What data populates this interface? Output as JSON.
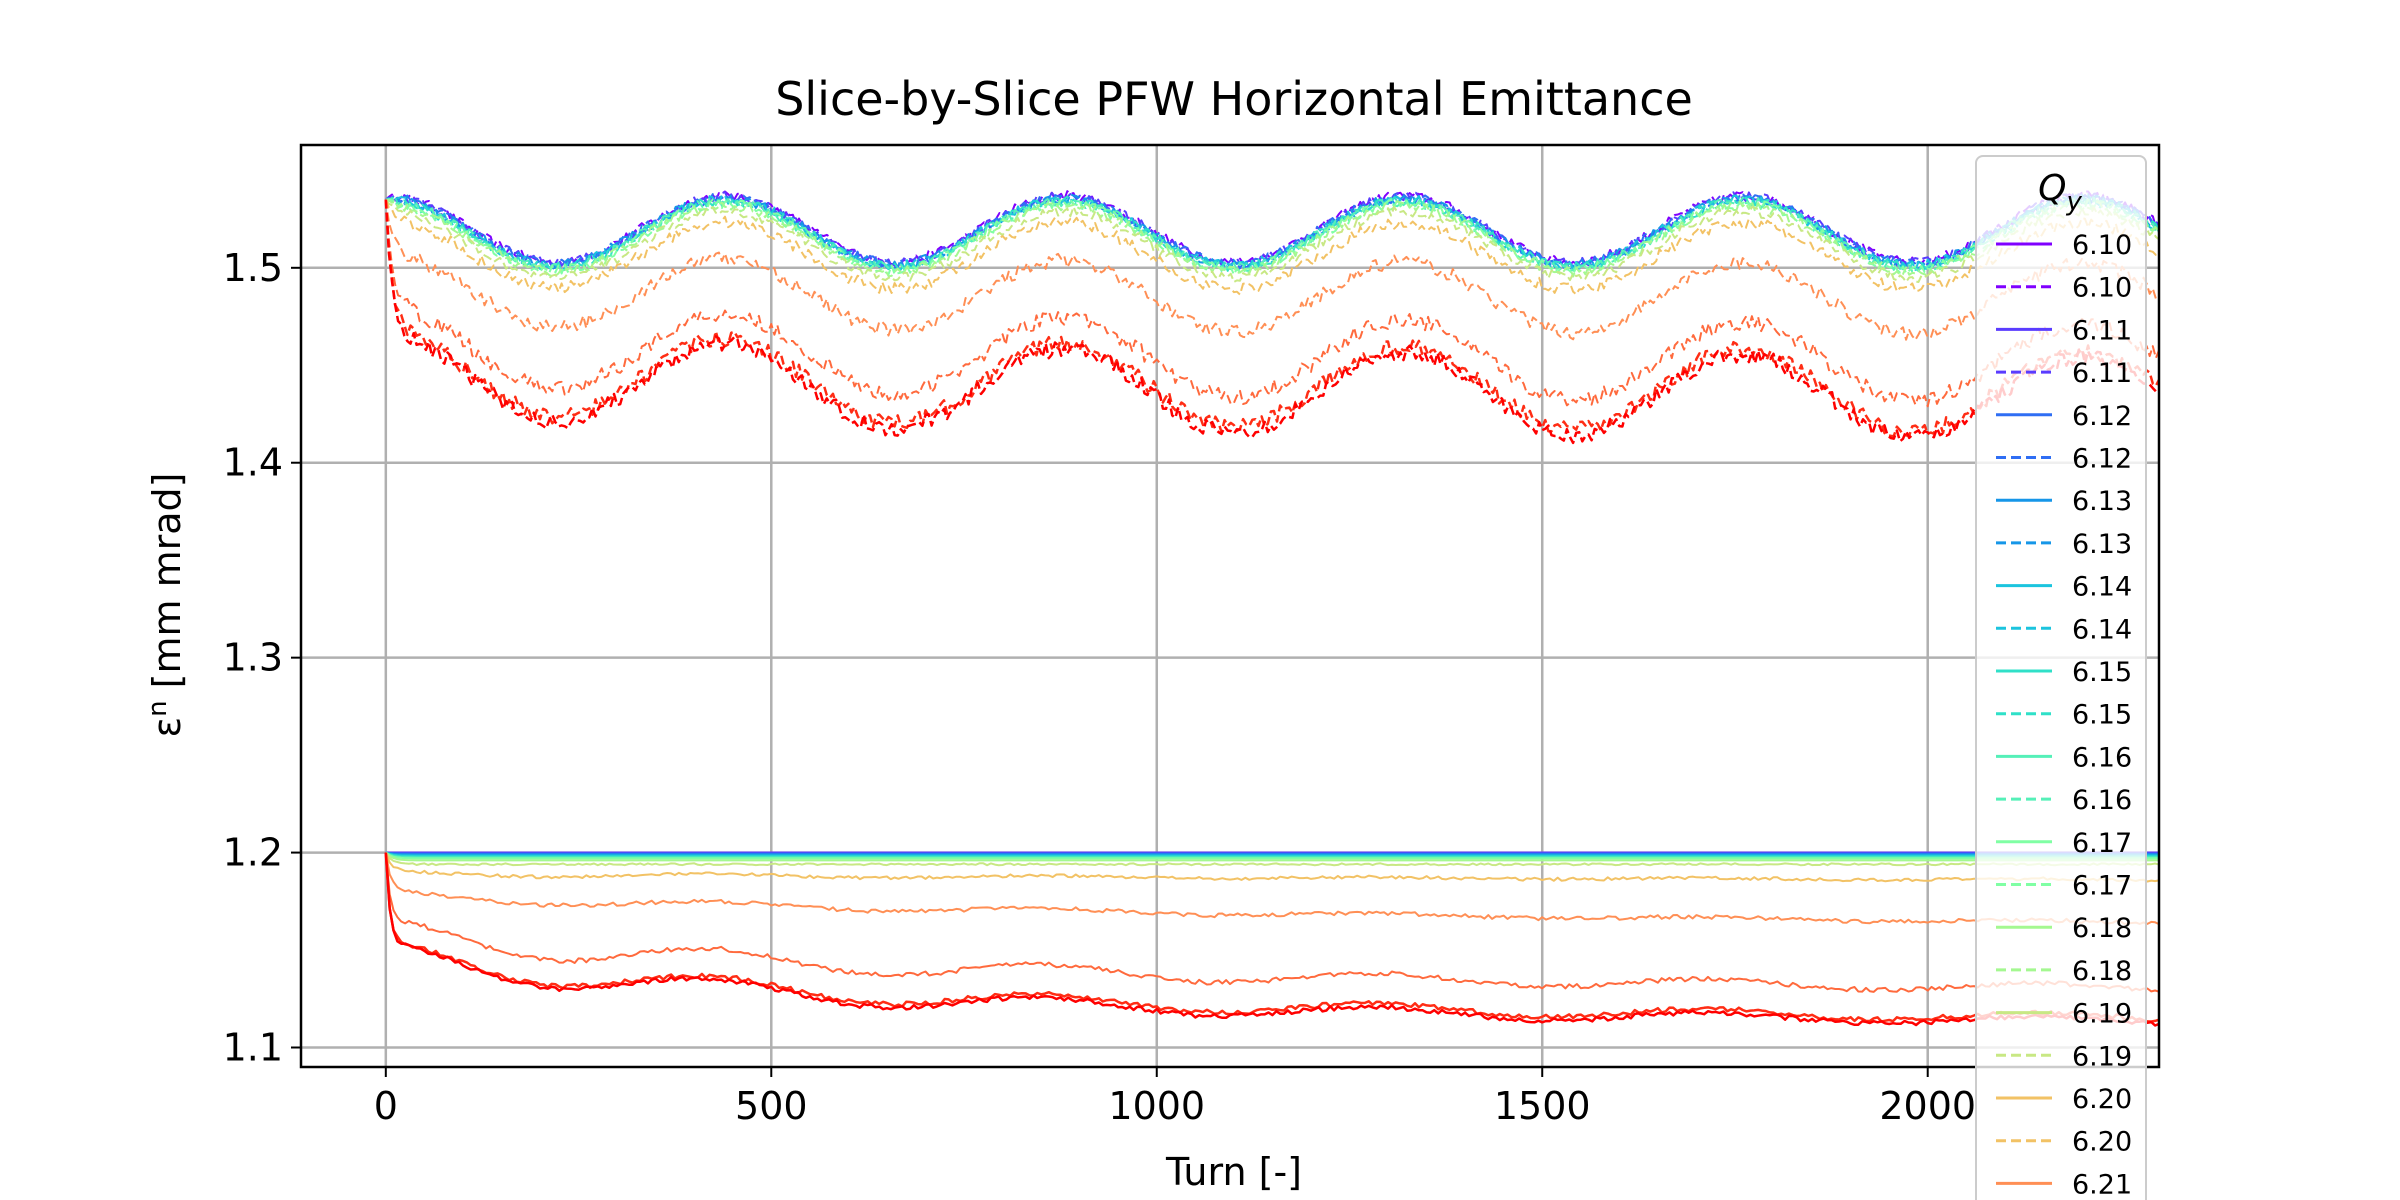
{
  "chart_data": {
    "type": "line",
    "title": "Slice-by-Slice PFW Horizontal Emittance",
    "xlabel": "Turn [-]",
    "ylabel_symbol": "ε",
    "ylabel_superscript": "n",
    "ylabel_unit": " [mm mrad]",
    "xlim": [
      -110,
      2300
    ],
    "ylim": [
      1.09,
      1.563
    ],
    "xticks": [
      {
        "value": 0,
        "label": "0"
      },
      {
        "value": 500,
        "label": "500"
      },
      {
        "value": 1000,
        "label": "1000"
      },
      {
        "value": 1500,
        "label": "1500"
      },
      {
        "value": 2000,
        "label": "2000"
      }
    ],
    "yticks": [
      {
        "value": 1.1,
        "label": "1.1"
      },
      {
        "value": 1.2,
        "label": "1.2"
      },
      {
        "value": 1.3,
        "label": "1.3"
      },
      {
        "value": 1.4,
        "label": "1.4"
      },
      {
        "value": 1.5,
        "label": "1.5"
      }
    ],
    "grid": true,
    "legend": {
      "title_main": "Q",
      "title_sub": "y",
      "placement": "right, extends below the axes",
      "entries": [
        {
          "label": "6.10",
          "color": "#8000ff",
          "style": "solid"
        },
        {
          "label": "6.10",
          "color": "#8000ff",
          "style": "dashed"
        },
        {
          "label": "6.11",
          "color": "#5a3cff",
          "style": "solid"
        },
        {
          "label": "6.11",
          "color": "#5a3cff",
          "style": "dashed"
        },
        {
          "label": "6.12",
          "color": "#2f6ef4",
          "style": "solid"
        },
        {
          "label": "6.12",
          "color": "#2f6ef4",
          "style": "dashed"
        },
        {
          "label": "6.13",
          "color": "#1696e8",
          "style": "solid"
        },
        {
          "label": "6.13",
          "color": "#1696e8",
          "style": "dashed"
        },
        {
          "label": "6.14",
          "color": "#1bc4de",
          "style": "solid"
        },
        {
          "label": "6.14",
          "color": "#1bc4de",
          "style": "dashed"
        },
        {
          "label": "6.15",
          "color": "#2fe0c8",
          "style": "solid"
        },
        {
          "label": "6.15",
          "color": "#2fe0c8",
          "style": "dashed"
        },
        {
          "label": "6.16",
          "color": "#55f0b8",
          "style": "solid"
        },
        {
          "label": "6.16",
          "color": "#55f0b8",
          "style": "dashed"
        },
        {
          "label": "6.17",
          "color": "#80ffa4",
          "style": "solid"
        },
        {
          "label": "6.17",
          "color": "#80ffa4",
          "style": "dashed"
        },
        {
          "label": "6.18",
          "color": "#a4f890",
          "style": "solid"
        },
        {
          "label": "6.18",
          "color": "#a4f890",
          "style": "dashed"
        },
        {
          "label": "6.19",
          "color": "#c8e884",
          "style": "solid"
        },
        {
          "label": "6.19",
          "color": "#c8e884",
          "style": "dashed"
        },
        {
          "label": "6.20",
          "color": "#f2c265",
          "style": "solid"
        },
        {
          "label": "6.20",
          "color": "#f2c265",
          "style": "dashed"
        },
        {
          "label": "6.21",
          "color": "#ff8f55",
          "style": "solid"
        }
      ]
    },
    "series": [
      {
        "group": "upper",
        "style": "dashed",
        "color": "#8000ff",
        "width": 2,
        "base": 1.52,
        "wave": 0.017,
        "dip": 0,
        "drift": 0,
        "noise": 0.0025
      },
      {
        "group": "upper",
        "style": "dashed",
        "color": "#5a3cff",
        "width": 2,
        "base": 1.5195,
        "wave": 0.017,
        "dip": 0,
        "drift": 0,
        "noise": 0.0025
      },
      {
        "group": "upper",
        "style": "dashed",
        "color": "#2f6ef4",
        "width": 2,
        "base": 1.519,
        "wave": 0.017,
        "dip": 0,
        "drift": 0,
        "noise": 0.0025
      },
      {
        "group": "upper",
        "style": "dashed",
        "color": "#1696e8",
        "width": 2,
        "base": 1.5185,
        "wave": 0.017,
        "dip": 0,
        "drift": 0,
        "noise": 0.0025
      },
      {
        "group": "upper",
        "style": "dashed",
        "color": "#1bc4de",
        "width": 2,
        "base": 1.518,
        "wave": 0.017,
        "dip": 0,
        "drift": 0,
        "noise": 0.0025
      },
      {
        "group": "upper",
        "style": "dashed",
        "color": "#2fe0c8",
        "width": 2,
        "base": 1.5175,
        "wave": 0.017,
        "dip": 0,
        "drift": 0,
        "noise": 0.0025
      },
      {
        "group": "upper",
        "style": "dashed",
        "color": "#55f0b8",
        "width": 2,
        "base": 1.517,
        "wave": 0.017,
        "dip": 0,
        "drift": 0,
        "noise": 0.0025
      },
      {
        "group": "upper",
        "style": "dashed",
        "color": "#80ffa4",
        "width": 2,
        "base": 1.516,
        "wave": 0.017,
        "dip": 0,
        "drift": 0,
        "noise": 0.0025
      },
      {
        "group": "upper",
        "style": "dashed",
        "color": "#a4f890",
        "width": 2,
        "base": 1.515,
        "wave": 0.017,
        "dip": 0,
        "drift": 0,
        "noise": 0.0025
      },
      {
        "group": "upper",
        "style": "dashed",
        "color": "#c8e884",
        "width": 2,
        "base": 1.512,
        "wave": 0.017,
        "dip": 0,
        "drift": 0,
        "noise": 0.0025
      },
      {
        "group": "upper",
        "style": "dashed",
        "color": "#f2c265",
        "width": 2,
        "base": 1.506,
        "wave": 0.017,
        "dip": 0.004,
        "drift": 0,
        "noise": 0.003
      },
      {
        "group": "upper",
        "style": "dashed",
        "color": "#ff8f55",
        "width": 2,
        "base": 1.486,
        "wave": 0.018,
        "dip": 0.01,
        "drift": -0.002,
        "noise": 0.0035
      },
      {
        "group": "upper",
        "style": "dashed",
        "color": "#ff6a3d",
        "width": 2,
        "base": 1.455,
        "wave": 0.02,
        "dip": 0.018,
        "drift": -0.004,
        "noise": 0.004
      },
      {
        "group": "upper",
        "style": "dashed",
        "color": "#ff2d15",
        "width": 2.5,
        "base": 1.441,
        "wave": 0.021,
        "dip": 0.022,
        "drift": -0.005,
        "noise": 0.004
      },
      {
        "group": "upper",
        "style": "dashed",
        "color": "#ff0000",
        "width": 2.5,
        "base": 1.438,
        "wave": 0.021,
        "dip": 0.024,
        "drift": -0.005,
        "noise": 0.004
      },
      {
        "group": "lower",
        "style": "solid",
        "color": "#8000ff",
        "width": 2,
        "base": 1.2,
        "wave": 0,
        "dip": 0,
        "drift": 0,
        "noise": 0
      },
      {
        "group": "lower",
        "style": "solid",
        "color": "#5a3cff",
        "width": 2,
        "base": 1.2,
        "wave": 0,
        "dip": 0,
        "drift": 0,
        "noise": 0
      },
      {
        "group": "lower",
        "style": "solid",
        "color": "#2f6ef4",
        "width": 2,
        "base": 1.1995,
        "wave": 0,
        "dip": 0,
        "drift": 0,
        "noise": 0
      },
      {
        "group": "lower",
        "style": "solid",
        "color": "#1696e8",
        "width": 2,
        "base": 1.199,
        "wave": 0,
        "dip": 0,
        "drift": 0,
        "noise": 0
      },
      {
        "group": "lower",
        "style": "solid",
        "color": "#1bc4de",
        "width": 2,
        "base": 1.1985,
        "wave": 0,
        "dip": 0,
        "drift": 0,
        "noise": 0
      },
      {
        "group": "lower",
        "style": "solid",
        "color": "#2fe0c8",
        "width": 2,
        "base": 1.198,
        "wave": 0,
        "dip": 0,
        "drift": 0,
        "noise": 0
      },
      {
        "group": "lower",
        "style": "solid",
        "color": "#55f0b8",
        "width": 2,
        "base": 1.1975,
        "wave": 0,
        "dip": 0,
        "drift": 0,
        "noise": 0
      },
      {
        "group": "lower",
        "style": "solid",
        "color": "#80ffa4",
        "width": 2,
        "base": 1.197,
        "wave": 0,
        "dip": 0,
        "drift": 0,
        "noise": 0
      },
      {
        "group": "lower",
        "style": "solid",
        "color": "#a4f890",
        "width": 2,
        "base": 1.196,
        "wave": 0,
        "dip": 0,
        "drift": 0,
        "noise": 0
      },
      {
        "group": "lower",
        "style": "solid",
        "color": "#c8e884",
        "width": 2,
        "base": 1.194,
        "wave": 0,
        "dip": 0,
        "drift": 0,
        "noise": 0.0005
      },
      {
        "group": "lower",
        "style": "solid",
        "color": "#f2c265",
        "width": 2,
        "base": 1.188,
        "wave": 0.001,
        "dip": 0.002,
        "drift": -0.002,
        "noise": 0.0008
      },
      {
        "group": "lower",
        "style": "solid",
        "color": "#ff8f55",
        "width": 2,
        "base": 1.172,
        "wave": 0.002,
        "dip": 0.01,
        "drift": -0.008,
        "noise": 0.001
      },
      {
        "group": "lower",
        "style": "solid",
        "color": "#ff6a3d",
        "width": 2,
        "base": 1.138,
        "wave": 0.006,
        "dip": 0.035,
        "drift": -0.008,
        "noise": 0.0012
      },
      {
        "group": "lower",
        "style": "solid",
        "color": "#ff2d15",
        "width": 2.5,
        "base": 1.121,
        "wave": 0.006,
        "dip": 0.045,
        "drift": -0.006,
        "noise": 0.0012
      },
      {
        "group": "lower",
        "style": "solid",
        "color": "#ff0000",
        "width": 2.5,
        "base": 1.119,
        "wave": 0.006,
        "dip": 0.047,
        "drift": -0.006,
        "noise": 0.0012
      }
    ]
  }
}
